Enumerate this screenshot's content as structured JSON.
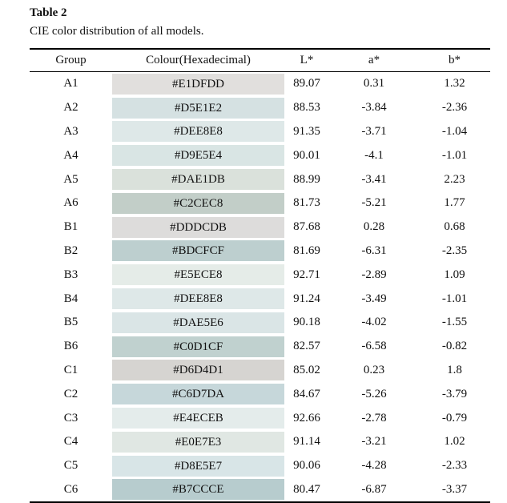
{
  "label": "Table 2",
  "caption": "CIE color distribution of all models.",
  "table": {
    "header": [
      "Group",
      "Colour(Hexadecimal)",
      "L*",
      "a*",
      "b*"
    ],
    "rows": [
      [
        "A1",
        "#E1DFDD",
        "89.07",
        "0.31",
        "1.32"
      ],
      [
        "A2",
        "#D5E1E2",
        "88.53",
        "-3.84",
        "-2.36"
      ],
      [
        "A3",
        "#DEE8E8",
        "91.35",
        "-3.71",
        "-1.04"
      ],
      [
        "A4",
        "#D9E5E4",
        "90.01",
        "-4.1",
        "-1.01"
      ],
      [
        "A5",
        "#DAE1DB",
        "88.99",
        "-3.41",
        "2.23"
      ],
      [
        "A6",
        "#C2CEC8",
        "81.73",
        "-5.21",
        "1.77"
      ],
      [
        "B1",
        "#DDDCDB",
        "87.68",
        "0.28",
        "0.68"
      ],
      [
        "B2",
        "#BDCFCF",
        "81.69",
        "-6.31",
        "-2.35"
      ],
      [
        "B3",
        "#E5ECE8",
        "92.71",
        "-2.89",
        "1.09"
      ],
      [
        "B4",
        "#DEE8E8",
        "91.24",
        "-3.49",
        "-1.01"
      ],
      [
        "B5",
        "#DAE5E6",
        "90.18",
        "-4.02",
        "-1.55"
      ],
      [
        "B6",
        "#C0D1CF",
        "82.57",
        "-6.58",
        "-0.82"
      ],
      [
        "C1",
        "#D6D4D1",
        "85.02",
        "0.23",
        "1.8"
      ],
      [
        "C2",
        "#C6D7DA",
        "84.67",
        "-5.26",
        "-3.79"
      ],
      [
        "C3",
        "#E4ECEB",
        "92.66",
        "-2.78",
        "-0.79"
      ],
      [
        "C4",
        "#E0E7E3",
        "91.14",
        "-3.21",
        "1.02"
      ],
      [
        "C5",
        "#D8E5E7",
        "90.06",
        "-4.28",
        "-2.33"
      ],
      [
        "C6",
        "#B7CCCE",
        "80.47",
        "-6.87",
        "-3.37"
      ]
    ]
  }
}
